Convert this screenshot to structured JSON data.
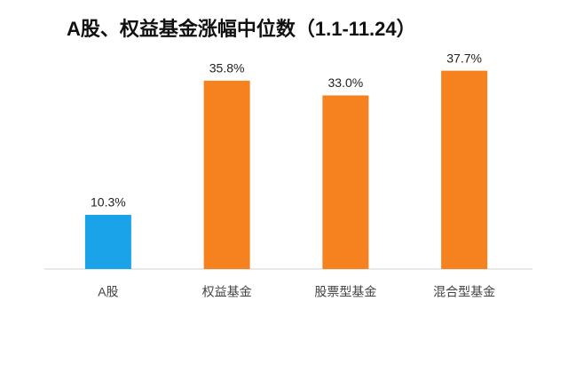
{
  "chart_data": {
    "type": "bar",
    "title": "A股、权益基金涨幅中位数（1.1-11.24）",
    "categories": [
      "A股",
      "权益基金",
      "股票型基金",
      "混合型基金"
    ],
    "values": [
      10.3,
      35.8,
      33.0,
      37.7
    ],
    "value_labels": [
      "10.3%",
      "35.8%",
      "33.0%",
      "37.7%"
    ],
    "colors": [
      "#1aa3e8",
      "#f5821f",
      "#f5821f",
      "#f5821f"
    ],
    "ylim": [
      0,
      40
    ],
    "grid": false
  }
}
